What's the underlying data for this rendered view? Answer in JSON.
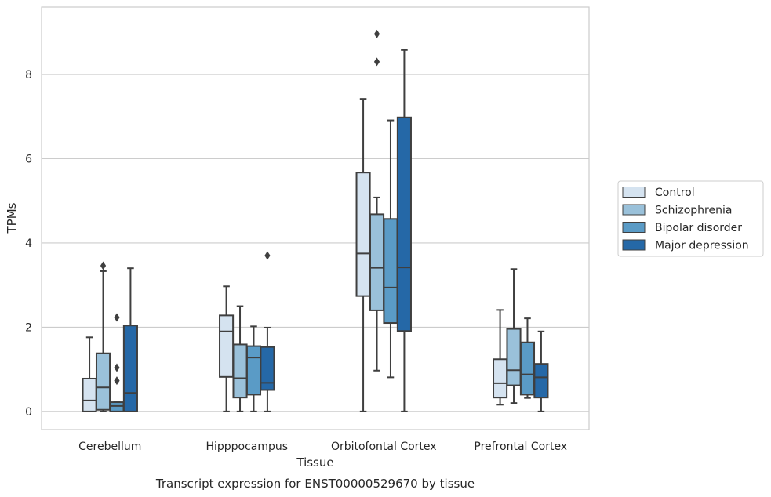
{
  "chart_data": {
    "type": "box",
    "xlabel": "Tissue",
    "ylabel": "TPMs",
    "caption": "Transcript expression for ENST00000529670 by tissue",
    "ylim": [
      -0.43,
      9.6
    ],
    "yticks": [
      0,
      2,
      4,
      6,
      8
    ],
    "grid": "horizontal",
    "legend_position": "right",
    "categories": [
      "Cerebellum",
      "Hipppocampus",
      "Orbitofontal Cortex",
      "Prefrontal Cortex"
    ],
    "series": [
      {
        "name": "Control",
        "color": "#d5e3f0",
        "boxes": [
          {
            "min": 0.0,
            "q1": 0.0,
            "median": 0.26,
            "q3": 0.78,
            "max": 1.76,
            "outliers": []
          },
          {
            "min": 0.0,
            "q1": 0.82,
            "median": 1.9,
            "q3": 2.28,
            "max": 2.97,
            "outliers": []
          },
          {
            "min": 0.0,
            "q1": 2.74,
            "median": 3.75,
            "q3": 5.67,
            "max": 7.42,
            "outliers": []
          },
          {
            "min": 0.16,
            "q1": 0.33,
            "median": 0.67,
            "q3": 1.24,
            "max": 2.41,
            "outliers": []
          }
        ]
      },
      {
        "name": "Schizophrenia",
        "color": "#9ac1da",
        "boxes": [
          {
            "min": 0.0,
            "q1": 0.04,
            "median": 0.57,
            "q3": 1.38,
            "max": 3.33,
            "outliers": [
              3.46
            ]
          },
          {
            "min": 0.0,
            "q1": 0.33,
            "median": 0.79,
            "q3": 1.59,
            "max": 2.5,
            "outliers": []
          },
          {
            "min": 0.97,
            "q1": 2.4,
            "median": 3.41,
            "q3": 4.68,
            "max": 5.08,
            "outliers": [
              8.3,
              8.96
            ]
          },
          {
            "min": 0.2,
            "q1": 0.62,
            "median": 0.98,
            "q3": 1.96,
            "max": 3.38,
            "outliers": []
          }
        ]
      },
      {
        "name": "Bipolar disorder",
        "color": "#5a9bc6",
        "boxes": [
          {
            "min": 0.0,
            "q1": 0.0,
            "median": 0.13,
            "q3": 0.22,
            "max": 0.22,
            "outliers": [
              0.73,
              1.04,
              2.23
            ]
          },
          {
            "min": 0.0,
            "q1": 0.4,
            "median": 1.28,
            "q3": 1.55,
            "max": 2.02,
            "outliers": []
          },
          {
            "min": 0.81,
            "q1": 2.1,
            "median": 2.94,
            "q3": 4.57,
            "max": 6.91,
            "outliers": []
          },
          {
            "min": 0.32,
            "q1": 0.4,
            "median": 0.88,
            "q3": 1.64,
            "max": 2.21,
            "outliers": []
          }
        ]
      },
      {
        "name": "Major depression",
        "color": "#2568a7",
        "boxes": [
          {
            "min": 0.0,
            "q1": 0.0,
            "median": 0.44,
            "q3": 2.04,
            "max": 3.4,
            "outliers": []
          },
          {
            "min": 0.0,
            "q1": 0.51,
            "median": 0.68,
            "q3": 1.53,
            "max": 1.99,
            "outliers": [
              3.7
            ]
          },
          {
            "min": 0.0,
            "q1": 1.91,
            "median": 3.42,
            "q3": 6.98,
            "max": 8.58,
            "outliers": []
          },
          {
            "min": 0.0,
            "q1": 0.33,
            "median": 0.81,
            "q3": 1.13,
            "max": 1.9,
            "outliers": []
          }
        ]
      }
    ]
  }
}
